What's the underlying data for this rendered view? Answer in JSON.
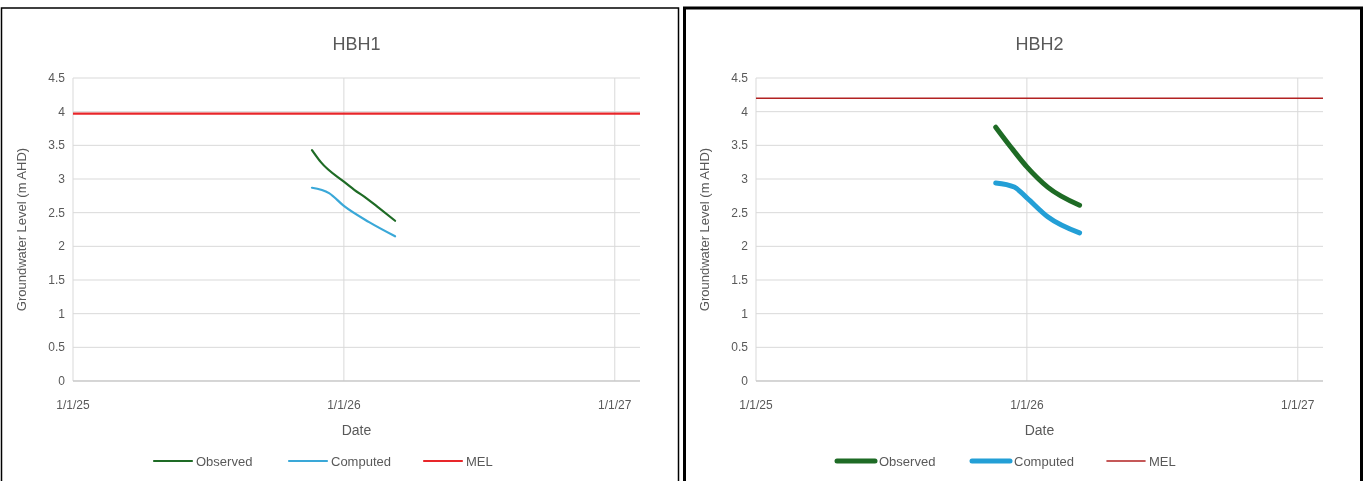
{
  "chart_data": [
    {
      "type": "line",
      "title": "HBH1",
      "xlabel": "Date",
      "ylabel": "Groundwater Level (m AHD)",
      "xlim": [
        "2025-01-01",
        "2027-02-04"
      ],
      "xticks": [
        {
          "value": "2025-01-01",
          "label": "1/1/25"
        },
        {
          "value": "2026-01-01",
          "label": "1/1/26"
        },
        {
          "value": "2027-01-01",
          "label": "1/1/27"
        }
      ],
      "ylim": [
        0,
        4.5
      ],
      "yticks": [
        0,
        0.5,
        1,
        1.5,
        2,
        2.5,
        3,
        3.5,
        4,
        4.5
      ],
      "grid": true,
      "legend": "bottom",
      "series": [
        {
          "name": "Observed",
          "color": "#1e6b25",
          "x": [
            "2025-11-19",
            "2025-12-01",
            "2026-01-01",
            "2026-01-15",
            "2026-02-01",
            "2026-02-15",
            "2026-03-11"
          ],
          "values": [
            3.43,
            3.25,
            2.96,
            2.84,
            2.71,
            2.59,
            2.38
          ]
        },
        {
          "name": "Computed",
          "color": "#3aa8d8",
          "x": [
            "2025-11-19",
            "2025-12-12",
            "2026-01-01",
            "2026-02-04",
            "2026-03-11"
          ],
          "values": [
            2.87,
            2.79,
            2.6,
            2.36,
            2.15
          ]
        }
      ],
      "ref_lines": [
        {
          "axis": "y",
          "value": 3.97,
          "label": "MEL",
          "color": "#e8262a"
        }
      ]
    },
    {
      "type": "line",
      "title": "HBH2",
      "xlabel": "Date",
      "ylabel": "Groundwater Level (m AHD)",
      "xlim": [
        "2025-01-01",
        "2027-02-04"
      ],
      "xticks": [
        {
          "value": "2025-01-01",
          "label": "1/1/25"
        },
        {
          "value": "2026-01-01",
          "label": "1/1/26"
        },
        {
          "value": "2027-01-01",
          "label": "1/1/27"
        }
      ],
      "ylim": [
        0,
        4.5
      ],
      "yticks": [
        0,
        0.5,
        1,
        1.5,
        2,
        2.5,
        3,
        3.5,
        4,
        4.5
      ],
      "grid": true,
      "legend": "bottom",
      "series": [
        {
          "name": "Observed",
          "color": "#1e6b25",
          "x": [
            "2025-11-20",
            "2025-12-10",
            "2026-01-01",
            "2026-01-29",
            "2026-03-13"
          ],
          "values": [
            3.77,
            3.48,
            3.18,
            2.88,
            2.61
          ]
        },
        {
          "name": "Computed",
          "color": "#239fd6",
          "x": [
            "2025-11-20",
            "2025-12-15",
            "2026-01-01",
            "2026-01-29",
            "2026-03-13"
          ],
          "values": [
            2.94,
            2.88,
            2.72,
            2.44,
            2.2
          ]
        }
      ],
      "ref_lines": [
        {
          "axis": "y",
          "value": 4.2,
          "label": "MEL",
          "color": "#b22222"
        }
      ]
    }
  ]
}
